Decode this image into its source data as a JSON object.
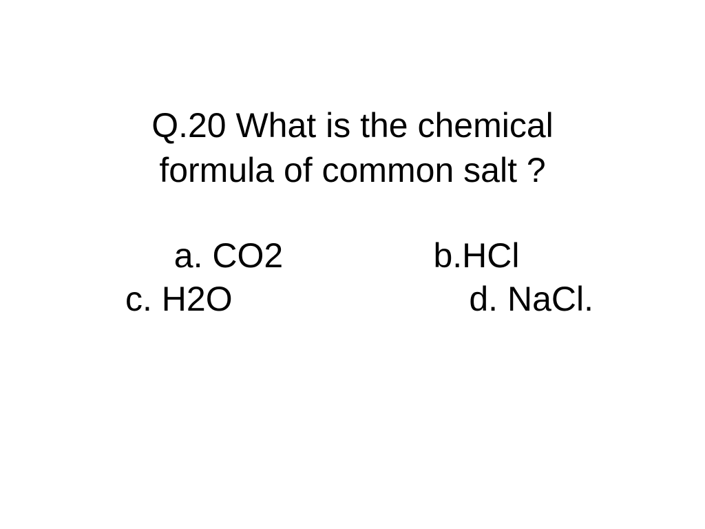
{
  "question": {
    "line1": "Q.20 What is the chemical",
    "line2": "formula of common salt ?"
  },
  "options": {
    "a": "a. CO2",
    "b": "b.HCl",
    "c": "c. H2O",
    "d": "d. NaCl."
  },
  "styling": {
    "background_color": "#ffffff",
    "text_color": "#000000",
    "font_family": "Comic Sans MS",
    "question_fontsize": 50,
    "option_fontsize": 50
  }
}
